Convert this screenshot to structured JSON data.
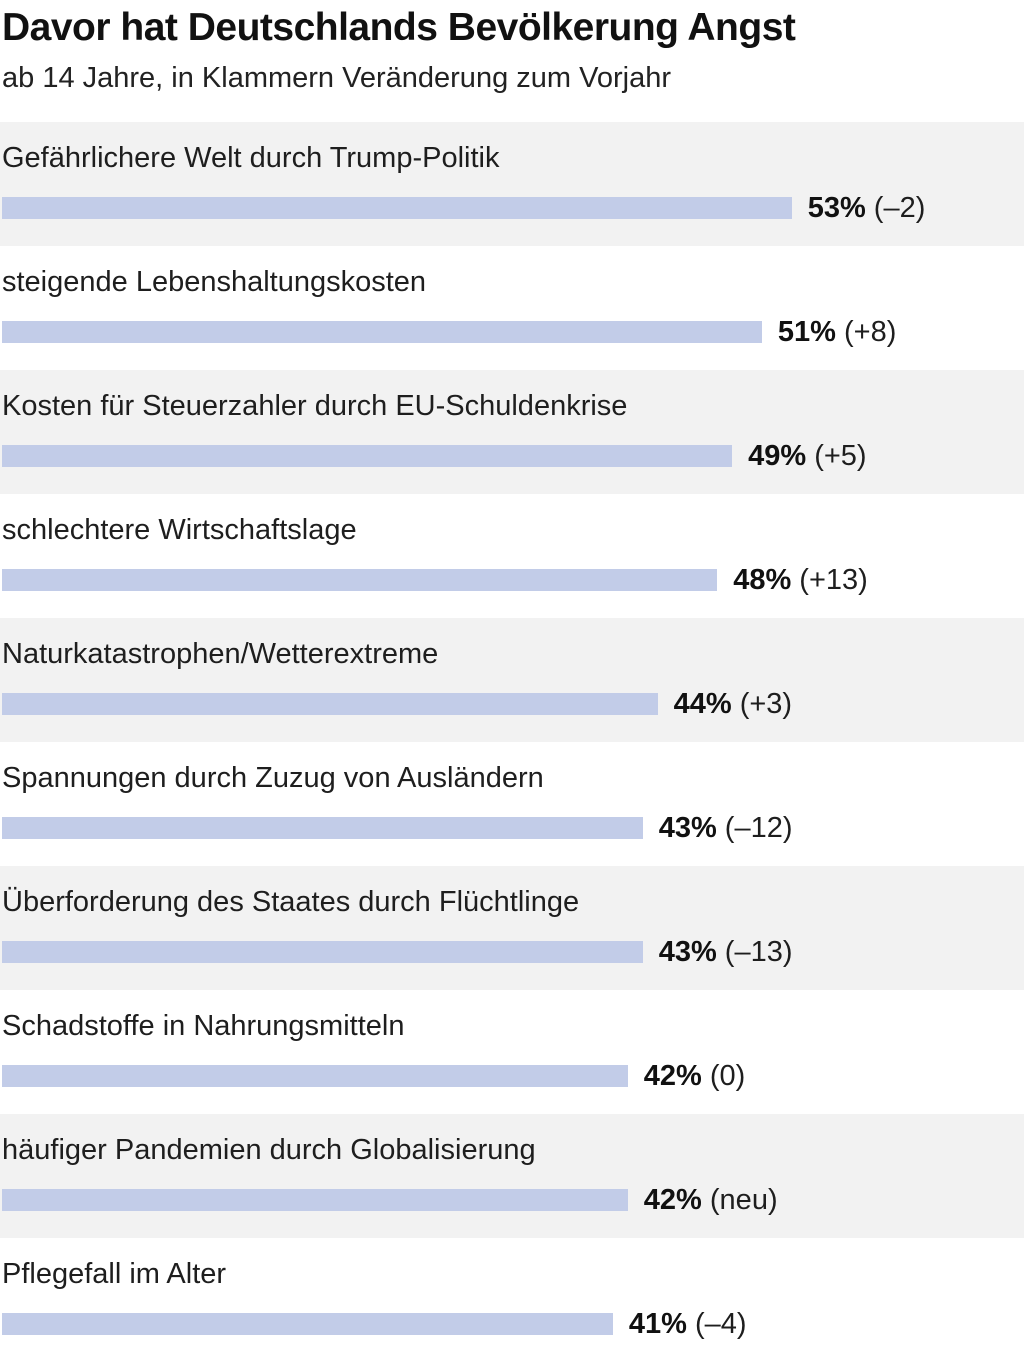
{
  "chart_data": {
    "type": "bar",
    "orientation": "horizontal",
    "title": "Davor hat Deutschlands Bevölkerung Angst",
    "subtitle": "ab 14 Jahre, in Klammern Veränderung zum Vorjahr",
    "unit": "%",
    "categories": [
      "Gefährlichere Welt durch Trump-Politik",
      "steigende Lebenshaltungskosten",
      "Kosten für Steuerzahler durch EU-Schuldenkrise",
      "schlechtere Wirtschaftslage",
      "Naturkatastrophen/Wetterextreme",
      "Spannungen durch Zuzug von Ausländern",
      "Überforderung des Staates durch Flüchtlinge",
      "Schadstoffe in Nahrungsmitteln",
      "häufiger Pandemien durch Globalisierung",
      "Pflegefall im Alter"
    ],
    "values": [
      53,
      51,
      49,
      48,
      44,
      43,
      43,
      42,
      42,
      41
    ],
    "value_labels": [
      "53%",
      "51%",
      "49%",
      "48%",
      "44%",
      "43%",
      "43%",
      "42%",
      "42%",
      "41%"
    ],
    "changes": [
      "(–2)",
      "(+8)",
      "(+5)",
      "(+13)",
      "(+3)",
      "(–12)",
      "(–13)",
      "(0)",
      "(neu)",
      "(–4)"
    ],
    "bar_color": "#c2cce8",
    "stripe_color": "#f2f2f2",
    "grid": false,
    "legend": "none"
  }
}
